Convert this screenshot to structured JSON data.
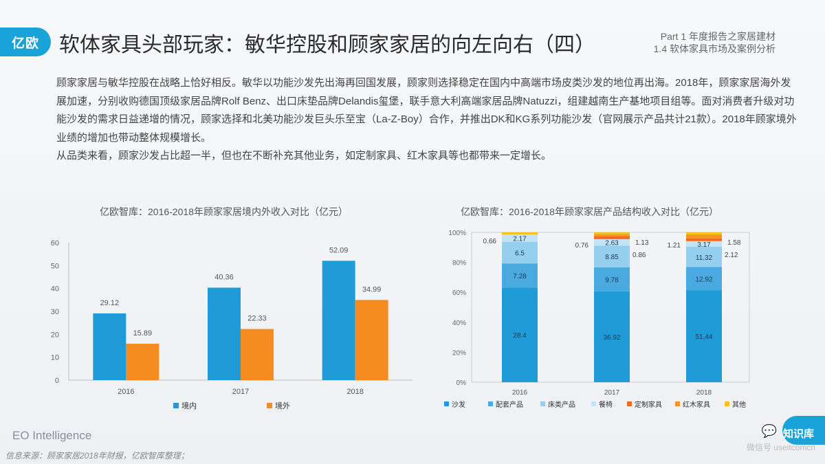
{
  "logo": "亿欧",
  "title": "软体家具头部玩家：敏华控股和顾家家居的向左向右（四）",
  "part": {
    "line1": "Part 1 年度报告之家居建材",
    "line2": "1.4 软体家具市场及案例分析"
  },
  "paragraphs": [
    "顾家家居与敏华控股在战略上恰好相反。敏华以功能沙发先出海再回国发展，顾家则选择稳定在国内中高端市场皮类沙发的地位再出海。2018年，顾家家居海外发展加速，分别收购德国顶级家居品牌Rolf Benz、出口床垫品牌Delandis玺堡，联手意大利高端家居品牌Natuzzi，组建越南生产基地项目组等。面对消费者升级对功能沙发的需求日益递增的情况，顾家选择和北美功能沙发巨头乐至宝（La-Z-Boy）合作，并推出DK和KG系列功能沙发（官网展示产品共计21款）。2018年顾家境外业绩的增加也带动整体规模增长。",
    "从品类来看，顾家沙发占比超一半，但也在不断补充其他业务，如定制家具、红木家具等也都带来一定增长。"
  ],
  "chart_data": [
    {
      "type": "bar",
      "title": "亿欧智库：2016-2018年顾家家居境内外收入对比（亿元）",
      "categories": [
        "2016",
        "2017",
        "2018"
      ],
      "ylim": [
        0,
        60
      ],
      "yticks": [
        "0",
        "10",
        "20",
        "30",
        "40",
        "50",
        "60"
      ],
      "legend_position": "bottom",
      "series": [
        {
          "name": "境内",
          "color": "#1f9bd7",
          "values": [
            29.12,
            40.36,
            52.09
          ],
          "labels": [
            "29.12",
            "40.36",
            "52.09"
          ]
        },
        {
          "name": "境外",
          "color": "#f68b1f",
          "values": [
            15.89,
            22.33,
            34.99
          ],
          "labels": [
            "15.89",
            "22.33",
            "34.99"
          ]
        }
      ]
    },
    {
      "type": "bar",
      "stacked": "percent",
      "title": "亿欧智库：2016-2018年顾家家居产品结构收入对比（亿元）",
      "categories": [
        "2016",
        "2017",
        "2018"
      ],
      "ylim": [
        0,
        100
      ],
      "yticks": [
        "0%",
        "20%",
        "40%",
        "60%",
        "80%",
        "100%"
      ],
      "legend_position": "bottom",
      "series": [
        {
          "name": "沙发",
          "color": "#1f9bd7",
          "values": [
            28.4,
            36.92,
            51.44
          ],
          "labels": [
            "28.4",
            "36.92",
            "51.44"
          ]
        },
        {
          "name": "配套产品",
          "color": "#4aa9df",
          "values": [
            7.28,
            9.78,
            12.92
          ],
          "labels": [
            "7.28",
            "9.78",
            "12.92"
          ]
        },
        {
          "name": "床类产品",
          "color": "#94cfee",
          "values": [
            6.5,
            8.85,
            11.32
          ],
          "labels": [
            "6.5",
            "8.85",
            "11.32"
          ]
        },
        {
          "name": "餐椅",
          "color": "#c4e4f5",
          "values": [
            2.17,
            2.63,
            3.17
          ],
          "labels": [
            "2.17",
            "2.63",
            "3.17"
          ]
        },
        {
          "name": "定制家具",
          "color": "#f46b1e",
          "values": [
            0,
            1.13,
            1.58
          ],
          "labels": [
            "",
            "1.13",
            "1.58"
          ]
        },
        {
          "name": "红木家具",
          "color": "#f7941d",
          "values": [
            0,
            0.86,
            2.12
          ],
          "labels": [
            "",
            "0.86",
            "2.12"
          ]
        },
        {
          "name": "其他",
          "color": "#f9c21a",
          "values": [
            0.66,
            0.76,
            1.21
          ],
          "labels": [
            "0.66",
            "0.76",
            "1.21"
          ]
        }
      ]
    }
  ],
  "footer": {
    "brand": "EO Intelligence",
    "source": "信息来源：顾家家居2018年财报，亿欧智库整理；"
  },
  "watermark": {
    "icon": "chat-bubble-icon",
    "label": "知识库",
    "sub": "微信号 useitcomcn"
  }
}
